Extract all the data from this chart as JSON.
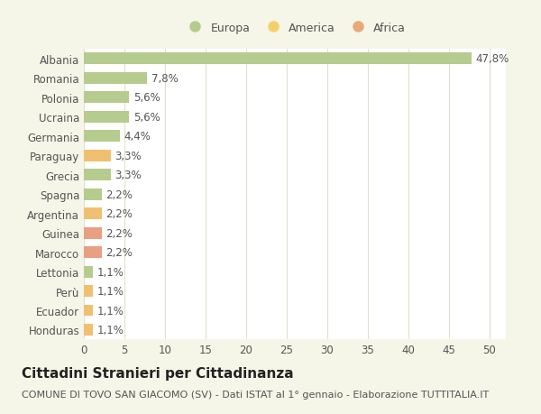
{
  "categories": [
    "Honduras",
    "Ecuador",
    "Perù",
    "Lettonia",
    "Marocco",
    "Guinea",
    "Argentina",
    "Spagna",
    "Grecia",
    "Paraguay",
    "Germania",
    "Ucraina",
    "Polonia",
    "Romania",
    "Albania"
  ],
  "values": [
    1.1,
    1.1,
    1.1,
    1.1,
    2.2,
    2.2,
    2.2,
    2.2,
    3.3,
    3.3,
    4.4,
    5.6,
    5.6,
    7.8,
    47.8
  ],
  "colors": [
    "#f0c070",
    "#f0c070",
    "#f0c070",
    "#b5cc8e",
    "#e8a080",
    "#e8a080",
    "#f0c070",
    "#b5cc8e",
    "#b5cc8e",
    "#f0c070",
    "#b5cc8e",
    "#b5cc8e",
    "#b5cc8e",
    "#b5cc8e",
    "#b5cc8e"
  ],
  "labels": [
    "1,1%",
    "1,1%",
    "1,1%",
    "1,1%",
    "2,2%",
    "2,2%",
    "2,2%",
    "2,2%",
    "3,3%",
    "3,3%",
    "4,4%",
    "5,6%",
    "5,6%",
    "7,8%",
    "47,8%"
  ],
  "title": "Cittadini Stranieri per Cittadinanza",
  "subtitle": "COMUNE DI TOVO SAN GIACOMO (SV) - Dati ISTAT al 1° gennaio - Elaborazione TUTTITALIA.IT",
  "xlim": [
    0,
    52
  ],
  "xticks": [
    0,
    5,
    10,
    15,
    20,
    25,
    30,
    35,
    40,
    45,
    50
  ],
  "legend_labels": [
    "Europa",
    "America",
    "Africa"
  ],
  "legend_colors": [
    "#b5cc8e",
    "#f5d06a",
    "#e8a878"
  ],
  "background_color": "#f5f5e8",
  "plot_bg_color": "#ffffff",
  "grid_color": "#e0e0d0",
  "text_color": "#555555",
  "label_fontsize": 8.5,
  "ytick_fontsize": 8.5,
  "xtick_fontsize": 8.5,
  "title_fontsize": 11,
  "subtitle_fontsize": 8,
  "bar_height": 0.6
}
